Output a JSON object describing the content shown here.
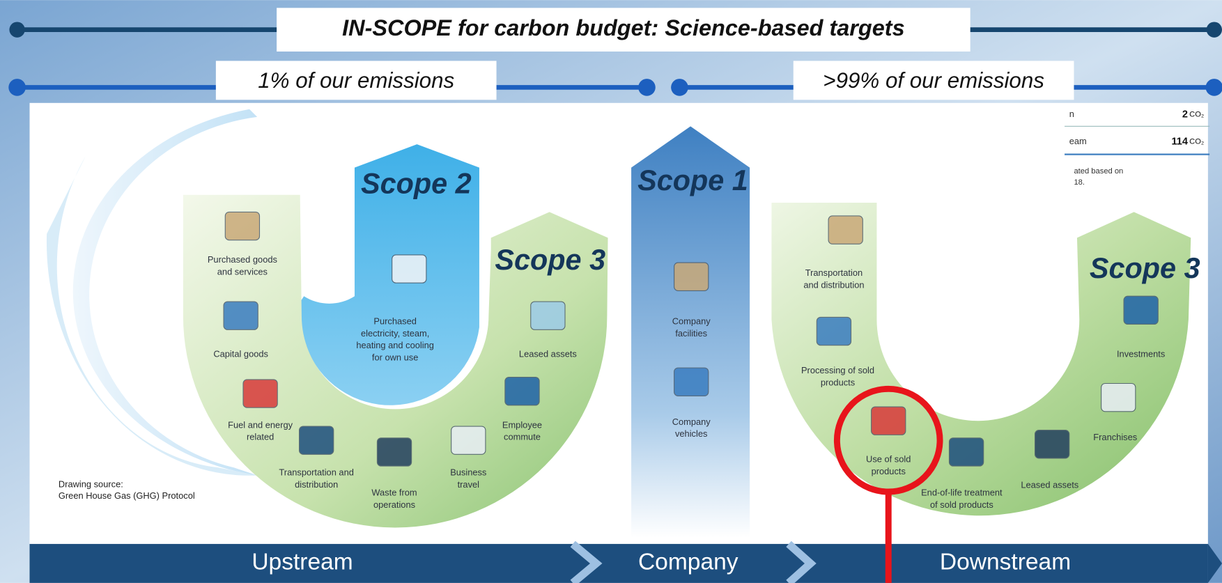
{
  "header": {
    "title": "IN-SCOPE for carbon budget: Science-based targets",
    "left_label": "1% of our emissions",
    "right_label": ">99% of our emissions"
  },
  "scopes": {
    "scope2": "Scope 2",
    "scope1": "Scope 1",
    "scope3_upstream": "Scope 3",
    "scope3_downstream": "Scope 3"
  },
  "upstream_items": [
    {
      "lines": [
        "Purchased goods",
        "and services"
      ]
    },
    {
      "lines": [
        "Capital goods"
      ]
    },
    {
      "lines": [
        "Fuel and energy",
        "related"
      ]
    },
    {
      "lines": [
        "Transportation and",
        "distribution"
      ]
    },
    {
      "lines": [
        "Waste from",
        "operations"
      ]
    },
    {
      "lines": [
        "Business",
        "travel"
      ]
    },
    {
      "lines": [
        "Employee",
        "commute"
      ]
    },
    {
      "lines": [
        "Leased assets"
      ]
    },
    {
      "lines": [
        "Purchased",
        "electricity, steam,",
        "heating and cooling",
        "for own use"
      ]
    }
  ],
  "company_items": [
    {
      "lines": [
        "Company",
        "facilities"
      ]
    },
    {
      "lines": [
        "Company",
        "vehicles"
      ]
    }
  ],
  "downstream_items": [
    {
      "lines": [
        "Transportation",
        "and distribution"
      ]
    },
    {
      "lines": [
        "Processing of sold",
        "products"
      ]
    },
    {
      "lines": [
        "Use of sold",
        "products"
      ]
    },
    {
      "lines": [
        "End-of-life treatment",
        "of sold products"
      ]
    },
    {
      "lines": [
        "Leased assets"
      ]
    },
    {
      "lines": [
        "Franchises"
      ]
    },
    {
      "lines": [
        "Investments"
      ]
    }
  ],
  "source": {
    "lines": [
      "Drawing source:",
      "Green House Gas (GHG) Protocol"
    ]
  },
  "table_fragment": {
    "rows": [
      {
        "label": "n",
        "value": "2",
        "unit": "CO₂"
      },
      {
        "label": "eam",
        "value": "114",
        "unit": "CO₂"
      }
    ],
    "note_lines": [
      "ated based on",
      "18."
    ]
  },
  "footer": {
    "stages": [
      "Upstream",
      "Company",
      "Downstream"
    ]
  }
}
